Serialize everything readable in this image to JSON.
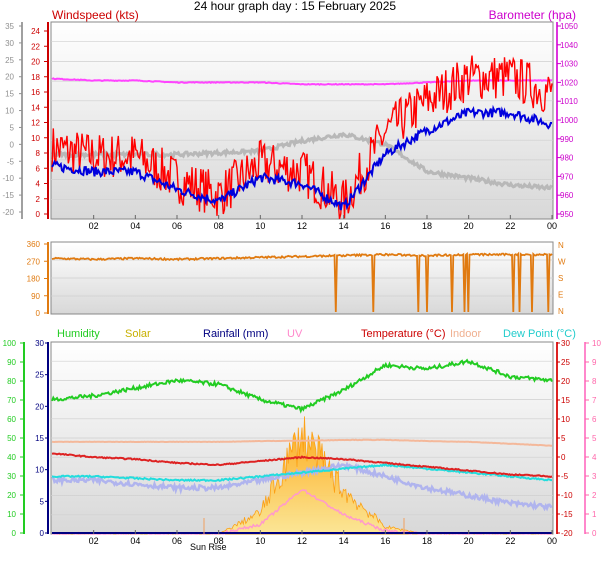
{
  "title": "24 hour graph day : 15 February 2025",
  "panel_wind": {
    "left_label": "Windspeed (kts)",
    "right_label": "Barometer (hpa)",
    "left_ticks": [
      "24",
      "22",
      "20",
      "18",
      "16",
      "14",
      "12",
      "10",
      "8",
      "6",
      "4",
      "2",
      "0"
    ],
    "outer_ticks": [
      "35",
      "30",
      "25",
      "20",
      "15",
      "10",
      "5",
      "0",
      "-5",
      "-10",
      "-15",
      "-20"
    ],
    "right_ticks": [
      "1050",
      "1040",
      "1030",
      "1020",
      "1010",
      "1000",
      "990",
      "980",
      "970",
      "960",
      "950"
    ]
  },
  "panel_dir": {
    "left_ticks": [
      "360",
      "270",
      "180",
      "90",
      "0"
    ],
    "right_ticks": [
      "N",
      "W",
      "S",
      "E",
      "N"
    ]
  },
  "panel_temp": {
    "legend": [
      "Humidity",
      "Solar",
      "Rainfall (mm)",
      "UV",
      "Temperature (°C)",
      "Indoor",
      "Dew Point (°C)"
    ],
    "sunrise_label": "Sun Rise",
    "humidity_ticks": [
      "100",
      "90",
      "80",
      "70",
      "60",
      "50",
      "40",
      "30",
      "20",
      "10",
      "0"
    ],
    "rain_ticks": [
      "30",
      "25",
      "20",
      "15",
      "10",
      "5",
      "0"
    ],
    "temp_ticks": [
      "30",
      "25",
      "20",
      "15",
      "10",
      "5",
      "0",
      "-5",
      "-10",
      "-15",
      "-20"
    ],
    "uv_ticks": [
      "10",
      "9",
      "8",
      "7",
      "6",
      "5",
      "4",
      "3",
      "2",
      "1",
      "0"
    ]
  },
  "x_ticks": [
    "02",
    "04",
    "06",
    "08",
    "10",
    "12",
    "14",
    "16",
    "18",
    "20",
    "22",
    "00"
  ],
  "colors": {
    "wind": "#ff0000",
    "gust_avg": "#0000dd",
    "barometer": "#ff44ff",
    "outer": "#b0b0b0",
    "direction": "#e07a10",
    "humidity": "#22cc22",
    "solar": "#ffb020",
    "rain": "#000080",
    "uv": "#ff88cc",
    "temperature": "#dd2222",
    "indoor": "#f4b89a",
    "dewpoint": "#22dddd",
    "outer_temp": "#b0b4ee"
  },
  "chart_data": [
    {
      "type": "line",
      "title": "24 hour graph day : 15 February 2025",
      "x": [
        "00",
        "02",
        "04",
        "06",
        "08",
        "10",
        "12",
        "14",
        "16",
        "18",
        "20",
        "22",
        "00"
      ],
      "series": [
        {
          "name": "Windspeed (kts)",
          "values": [
            9,
            8,
            8,
            5,
            3,
            7,
            6,
            2,
            11,
            15,
            18,
            18,
            16
          ]
        },
        {
          "name": "Barometer (hpa)",
          "values": [
            1022,
            1021,
            1021,
            1020,
            1020,
            1020,
            1019,
            1019,
            1019,
            1020,
            1021,
            1021,
            1021
          ]
        }
      ],
      "xlabel": "",
      "ylim": [
        0,
        25
      ]
    },
    {
      "type": "line",
      "x": [
        "00",
        "02",
        "04",
        "06",
        "08",
        "10",
        "12",
        "14",
        "16",
        "18",
        "20",
        "22",
        "00"
      ],
      "series": [
        {
          "values": [
            285,
            280,
            285,
            280,
            285,
            290,
            295,
            300,
            305,
            300,
            305,
            305,
            305
          ]
        }
      ],
      "ylim": [
        0,
        360
      ]
    },
    {
      "type": "line",
      "x": [
        "00",
        "02",
        "04",
        "06",
        "08",
        "10",
        "12",
        "14",
        "16",
        "18",
        "20",
        "22",
        "00"
      ],
      "series": [
        {
          "name": "Humidity",
          "values": [
            70,
            72,
            76,
            80,
            78,
            70,
            65,
            75,
            88,
            86,
            90,
            82,
            80
          ]
        },
        {
          "name": "Temperature (°C)",
          "values": [
            1,
            0,
            -0.5,
            -1.5,
            -2,
            -1,
            0,
            -0.5,
            -1.5,
            -2.5,
            -3.5,
            -4.5,
            -5
          ]
        },
        {
          "name": "Indoor",
          "values": [
            4,
            4,
            4,
            4,
            4,
            4.2,
            4.3,
            4.5,
            4.5,
            4.2,
            4,
            3.5,
            3
          ]
        },
        {
          "name": "Dew Point (°C)",
          "values": [
            -5,
            -5,
            -5.5,
            -6,
            -6,
            -5,
            -4,
            -3,
            -2,
            -3,
            -4,
            -5,
            -6
          ]
        },
        {
          "name": "Solar",
          "values": [
            0,
            0,
            0,
            0,
            0,
            3,
            14,
            6,
            1,
            0,
            0,
            0,
            0
          ]
        },
        {
          "name": "Rainfall (mm)",
          "values": [
            0,
            0,
            0,
            0,
            0,
            0,
            0,
            0,
            0,
            0,
            0,
            0,
            0
          ]
        }
      ],
      "ylim": [
        0,
        100
      ]
    }
  ]
}
